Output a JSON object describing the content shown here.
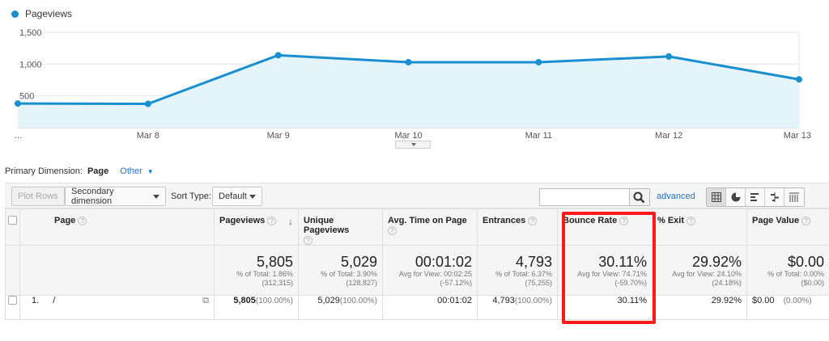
{
  "legend": {
    "label": "Pageviews",
    "color": "#1a8fd0"
  },
  "chart_data": {
    "type": "area",
    "series": [
      {
        "name": "Pageviews",
        "values": [
          380,
          375,
          1140,
          1030,
          1030,
          1120,
          760
        ]
      }
    ],
    "x": [
      "...",
      "Mar 8",
      "Mar 9",
      "Mar 10",
      "Mar 11",
      "Mar 12",
      "Mar 13"
    ],
    "y_ticks": [
      "1,500",
      "1,000",
      "500"
    ],
    "ylim": [
      0,
      1500
    ],
    "grid": true,
    "color": "#1a8fd0",
    "fill": "#e5f3fb"
  },
  "dimension_bar": {
    "label": "Primary Dimension:",
    "active": "Page",
    "other": "Other"
  },
  "toolbar": {
    "plot_rows": "Plot Rows",
    "secondary_dimension": "Secondary dimension",
    "sort_type_label": "Sort Type:",
    "sort_type_value": "Default",
    "search_value": "",
    "advanced": "advanced"
  },
  "table": {
    "headers": {
      "page": "Page",
      "pageviews": "Pageviews",
      "unique_pageviews": "Unique Pageviews",
      "avg_time": "Avg. Time on Page",
      "entrances": "Entrances",
      "bounce_rate": "Bounce Rate",
      "exit": "% Exit",
      "page_value": "Page Value"
    },
    "totals": {
      "pageviews": {
        "value": "5,805",
        "line1": "% of Total: 1.86%",
        "line2": "(312,315)"
      },
      "unique_pageviews": {
        "value": "5,029",
        "line1": "% of Total: 3.90%",
        "line2": "(128,827)"
      },
      "avg_time": {
        "value": "00:01:02",
        "line1": "Avg for View: 00:02:25",
        "line2": "(-57.12%)"
      },
      "entrances": {
        "value": "4,793",
        "line1": "% of Total: 6.37%",
        "line2": "(75,255)"
      },
      "bounce_rate": {
        "value": "30.11%",
        "line1": "Avg for View: 74.71%",
        "line2": "(-59.70%)"
      },
      "exit": {
        "value": "29.92%",
        "line1": "Avg for View: 24.10%",
        "line2": "(24.18%)"
      },
      "page_value": {
        "value": "$0.00",
        "line1": "% of Total: 0.00%",
        "line2": "($0.00)"
      }
    },
    "rows": [
      {
        "index": "1.",
        "page": "/",
        "pageviews": "5,805",
        "pageviews_pct": "(100.00%)",
        "unique_pageviews": "5,029",
        "unique_pageviews_pct": "(100.00%)",
        "avg_time": "00:01:02",
        "entrances": "4,793",
        "entrances_pct": "(100.00%)",
        "bounce_rate": "30.11%",
        "exit": "29.92%",
        "page_value": "$0.00",
        "page_value_pct": "(0.00%)"
      }
    ]
  },
  "highlight_color": "#ff1a1a"
}
